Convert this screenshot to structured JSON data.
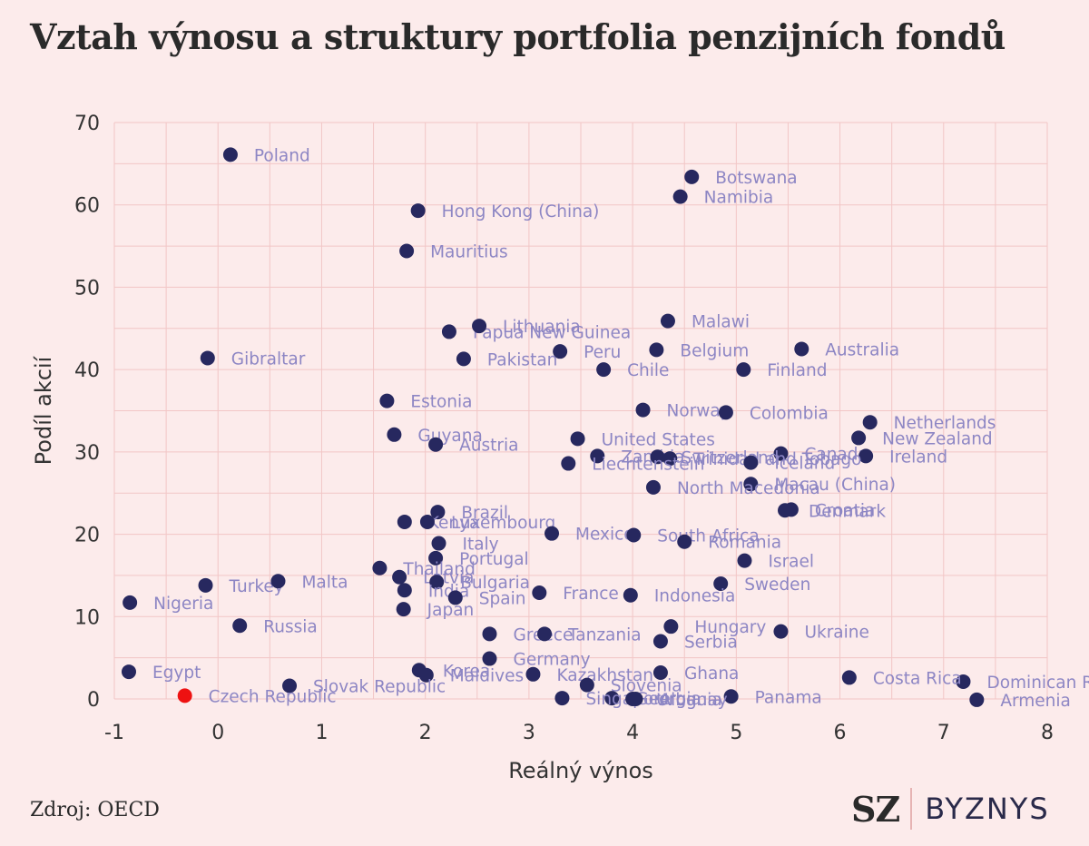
{
  "title": "Vztah výnosu a struktury portfolia penzijních fondů",
  "source": "Zdroj: OECD",
  "brand": {
    "mark": "SZ",
    "name": "BYZNYS"
  },
  "colors": {
    "point": "#27285f",
    "highlight": "#ee1111",
    "label": "#8d86c4",
    "grid": "#f2c6c6",
    "background": "#fcebeb"
  },
  "chart_data": {
    "type": "scatter",
    "xlabel": "Reálný výnos",
    "ylabel": "Podíl akcií",
    "xlim": [
      -1,
      8
    ],
    "ylim": [
      0,
      70
    ],
    "xticks": [
      -1,
      0,
      1,
      2,
      3,
      4,
      5,
      6,
      7,
      8
    ],
    "yticks": [
      0,
      10,
      20,
      30,
      40,
      50,
      60,
      70
    ],
    "grid": true,
    "points": [
      {
        "label": "Poland",
        "x": 0.12,
        "y": 66.1
      },
      {
        "label": "Botswana",
        "x": 4.57,
        "y": 63.4
      },
      {
        "label": "Namibia",
        "x": 4.46,
        "y": 61.0
      },
      {
        "label": "Hong Kong (China)",
        "x": 1.93,
        "y": 59.3
      },
      {
        "label": "Mauritius",
        "x": 1.82,
        "y": 54.4
      },
      {
        "label": "Malawi",
        "x": 4.34,
        "y": 45.9
      },
      {
        "label": "Papua New Guinea",
        "x": 2.23,
        "y": 44.6
      },
      {
        "label": "Lithuania",
        "x": 2.52,
        "y": 45.3
      },
      {
        "label": "Australia",
        "x": 5.63,
        "y": 42.5
      },
      {
        "label": "Belgium",
        "x": 4.23,
        "y": 42.4
      },
      {
        "label": "Peru",
        "x": 3.3,
        "y": 42.2
      },
      {
        "label": "Gibraltar",
        "x": -0.1,
        "y": 41.4
      },
      {
        "label": "Pakistan",
        "x": 2.37,
        "y": 41.3
      },
      {
        "label": "Finland",
        "x": 5.07,
        "y": 40.0
      },
      {
        "label": "Chile",
        "x": 3.72,
        "y": 40.0
      },
      {
        "label": "Estonia",
        "x": 1.63,
        "y": 36.2
      },
      {
        "label": "Norway",
        "x": 4.1,
        "y": 35.1
      },
      {
        "label": "Colombia",
        "x": 4.9,
        "y": 34.8
      },
      {
        "label": "Netherlands",
        "x": 6.29,
        "y": 33.6
      },
      {
        "label": "Guyana",
        "x": 1.7,
        "y": 32.1
      },
      {
        "label": "New Zealand",
        "x": 6.18,
        "y": 31.7
      },
      {
        "label": "United States",
        "x": 3.47,
        "y": 31.6
      },
      {
        "label": "Austria",
        "x": 2.1,
        "y": 30.9
      },
      {
        "label": "Canada",
        "x": 5.43,
        "y": 29.8
      },
      {
        "label": "Ireland",
        "x": 6.25,
        "y": 29.5
      },
      {
        "label": "Zambia",
        "x": 3.66,
        "y": 29.5
      },
      {
        "label": "Switzerland",
        "x": 4.24,
        "y": 29.4
      },
      {
        "label": "Trinidad and Tobago",
        "x": 4.36,
        "y": 29.2
      },
      {
        "label": "Iceland",
        "x": 5.14,
        "y": 28.7
      },
      {
        "label": "Liechtenstein",
        "x": 3.38,
        "y": 28.6
      },
      {
        "label": "Macau (China)",
        "x": 5.14,
        "y": 26.1
      },
      {
        "label": "North Macedonia",
        "x": 4.2,
        "y": 25.7
      },
      {
        "label": "Denmark",
        "x": 5.47,
        "y": 22.9
      },
      {
        "label": "Croatia",
        "x": 5.53,
        "y": 23.0
      },
      {
        "label": "Brazil",
        "x": 2.12,
        "y": 22.7
      },
      {
        "label": "Kenya",
        "x": 1.8,
        "y": 21.5
      },
      {
        "label": "Luxembourg",
        "x": 2.02,
        "y": 21.5
      },
      {
        "label": "Mexico",
        "x": 3.22,
        "y": 20.1
      },
      {
        "label": "South Africa",
        "x": 4.01,
        "y": 19.9
      },
      {
        "label": "Romania",
        "x": 4.5,
        "y": 19.1
      },
      {
        "label": "Italy",
        "x": 2.13,
        "y": 18.9
      },
      {
        "label": "Israel",
        "x": 5.08,
        "y": 16.8
      },
      {
        "label": "Portugal",
        "x": 2.1,
        "y": 17.1
      },
      {
        "label": "Thailand",
        "x": 1.56,
        "y": 15.9
      },
      {
        "label": "Turkey",
        "x": -0.12,
        "y": 13.8
      },
      {
        "label": "Malta",
        "x": 0.58,
        "y": 14.3
      },
      {
        "label": "Latvia",
        "x": 1.75,
        "y": 14.8
      },
      {
        "label": "Bulgaria",
        "x": 2.11,
        "y": 14.2
      },
      {
        "label": "Sweden",
        "x": 4.85,
        "y": 14.0
      },
      {
        "label": "India",
        "x": 1.8,
        "y": 13.2
      },
      {
        "label": "France",
        "x": 3.1,
        "y": 12.9
      },
      {
        "label": "Indonesia",
        "x": 3.98,
        "y": 12.6
      },
      {
        "label": "Spain",
        "x": 2.29,
        "y": 12.3
      },
      {
        "label": "Nigeria",
        "x": -0.85,
        "y": 11.7
      },
      {
        "label": "Japan",
        "x": 1.79,
        "y": 10.9
      },
      {
        "label": "Hungary",
        "x": 4.37,
        "y": 8.8
      },
      {
        "label": "Russia",
        "x": 0.21,
        "y": 8.9
      },
      {
        "label": "Ukraine",
        "x": 5.43,
        "y": 8.2
      },
      {
        "label": "Greece",
        "x": 2.62,
        "y": 7.9
      },
      {
        "label": "Tanzania",
        "x": 3.15,
        "y": 7.9
      },
      {
        "label": "Serbia",
        "x": 4.27,
        "y": 7.0
      },
      {
        "label": "Germany",
        "x": 2.62,
        "y": 4.9
      },
      {
        "label": "Dominican Republic",
        "x": 7.19,
        "y": 2.1
      },
      {
        "label": "Kazakhstan",
        "x": 3.04,
        "y": 3.0
      },
      {
        "label": "Korea",
        "x": 1.94,
        "y": 3.5
      },
      {
        "label": "Maldives",
        "x": 2.01,
        "y": 2.9
      },
      {
        "label": "Ghana",
        "x": 4.27,
        "y": 3.2
      },
      {
        "label": "Egypt",
        "x": -0.86,
        "y": 3.3
      },
      {
        "label": "Costa Rica",
        "x": 6.09,
        "y": 2.6
      },
      {
        "label": "Slovenia",
        "x": 3.56,
        "y": 1.7
      },
      {
        "label": "Slovak Republic",
        "x": 0.69,
        "y": 1.6
      },
      {
        "label": "Georgia",
        "x": 3.8,
        "y": 0.1
      },
      {
        "label": "Singapore",
        "x": 3.32,
        "y": 0.1
      },
      {
        "label": "Panama",
        "x": 4.95,
        "y": 0.3
      },
      {
        "label": "Uruguay",
        "x": 4.0,
        "y": 0.0
      },
      {
        "label": "Albania",
        "x": 4.03,
        "y": 0.0
      },
      {
        "label": "Armenia",
        "x": 7.32,
        "y": -0.1
      },
      {
        "label": "Czech Republic",
        "x": -0.32,
        "y": 0.4,
        "highlight": true
      }
    ]
  }
}
